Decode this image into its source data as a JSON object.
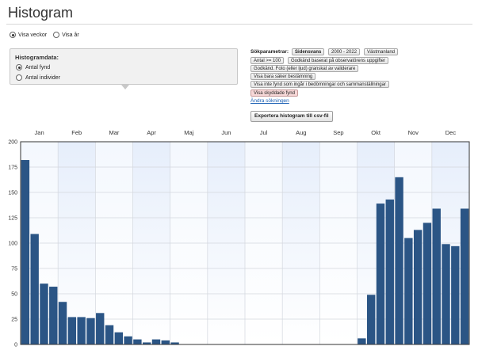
{
  "page": {
    "title": "Histogram"
  },
  "top_options": [
    {
      "label": "Visa veckor",
      "checked": true
    },
    {
      "label": "Visa år",
      "checked": false
    }
  ],
  "histogram_data": {
    "title": "Histogramdata:",
    "options": [
      {
        "label": "Antal fynd",
        "checked": true
      },
      {
        "label": "Antal individer",
        "checked": false
      }
    ]
  },
  "search_params": {
    "label": "Sökparametrar:",
    "tags": [
      {
        "label": "Sidensvans",
        "bold": true,
        "highlight": false
      },
      {
        "label": "2000 - 2022",
        "bold": false,
        "highlight": false
      },
      {
        "label": "Västmanland",
        "bold": false,
        "highlight": false
      },
      {
        "label": "Antal >= 100",
        "bold": false,
        "highlight": false
      },
      {
        "label": "Godkänd baserat på observatörens uppgifter",
        "bold": false,
        "highlight": false
      },
      {
        "label": "Godkänd. Foto (eller ljud) granskat av validerare",
        "bold": false,
        "highlight": false
      },
      {
        "label": "Visa bara säker bestämning",
        "bold": false,
        "highlight": false
      },
      {
        "label": "Visa inte fynd som ingår i bedömningar och sammanställningar",
        "bold": false,
        "highlight": false
      },
      {
        "label": "Visa skyddade fynd",
        "bold": false,
        "highlight": true
      }
    ],
    "change_link": "Ändra sökningen"
  },
  "export_button": "Exportera histogram till csv-fil",
  "colors": {
    "bar": "#2b5585",
    "band_shaded": "#e6eefb",
    "band_light": "#f4f8fe",
    "link": "#1a5fb4",
    "highlight_tag": "#f7d8d8"
  },
  "chart_data": {
    "type": "bar",
    "months": [
      "Jan",
      "Feb",
      "Mar",
      "Apr",
      "Maj",
      "Jun",
      "Jul",
      "Aug",
      "Sep",
      "Okt",
      "Nov",
      "Dec"
    ],
    "ylim": [
      0,
      200
    ],
    "yticks": [
      0,
      25,
      50,
      75,
      100,
      125,
      150,
      175,
      200
    ],
    "grid": true,
    "bins": 48,
    "values": [
      182,
      109,
      60,
      57,
      42,
      27,
      27,
      26,
      31,
      19,
      12,
      8,
      5,
      2,
      5,
      4,
      2,
      0,
      0,
      0,
      0,
      0,
      0,
      0,
      0,
      0,
      0,
      0,
      0,
      0,
      0,
      0,
      0,
      0,
      0,
      0,
      6,
      49,
      139,
      143,
      165,
      105,
      113,
      120,
      134,
      99,
      97,
      134
    ]
  }
}
